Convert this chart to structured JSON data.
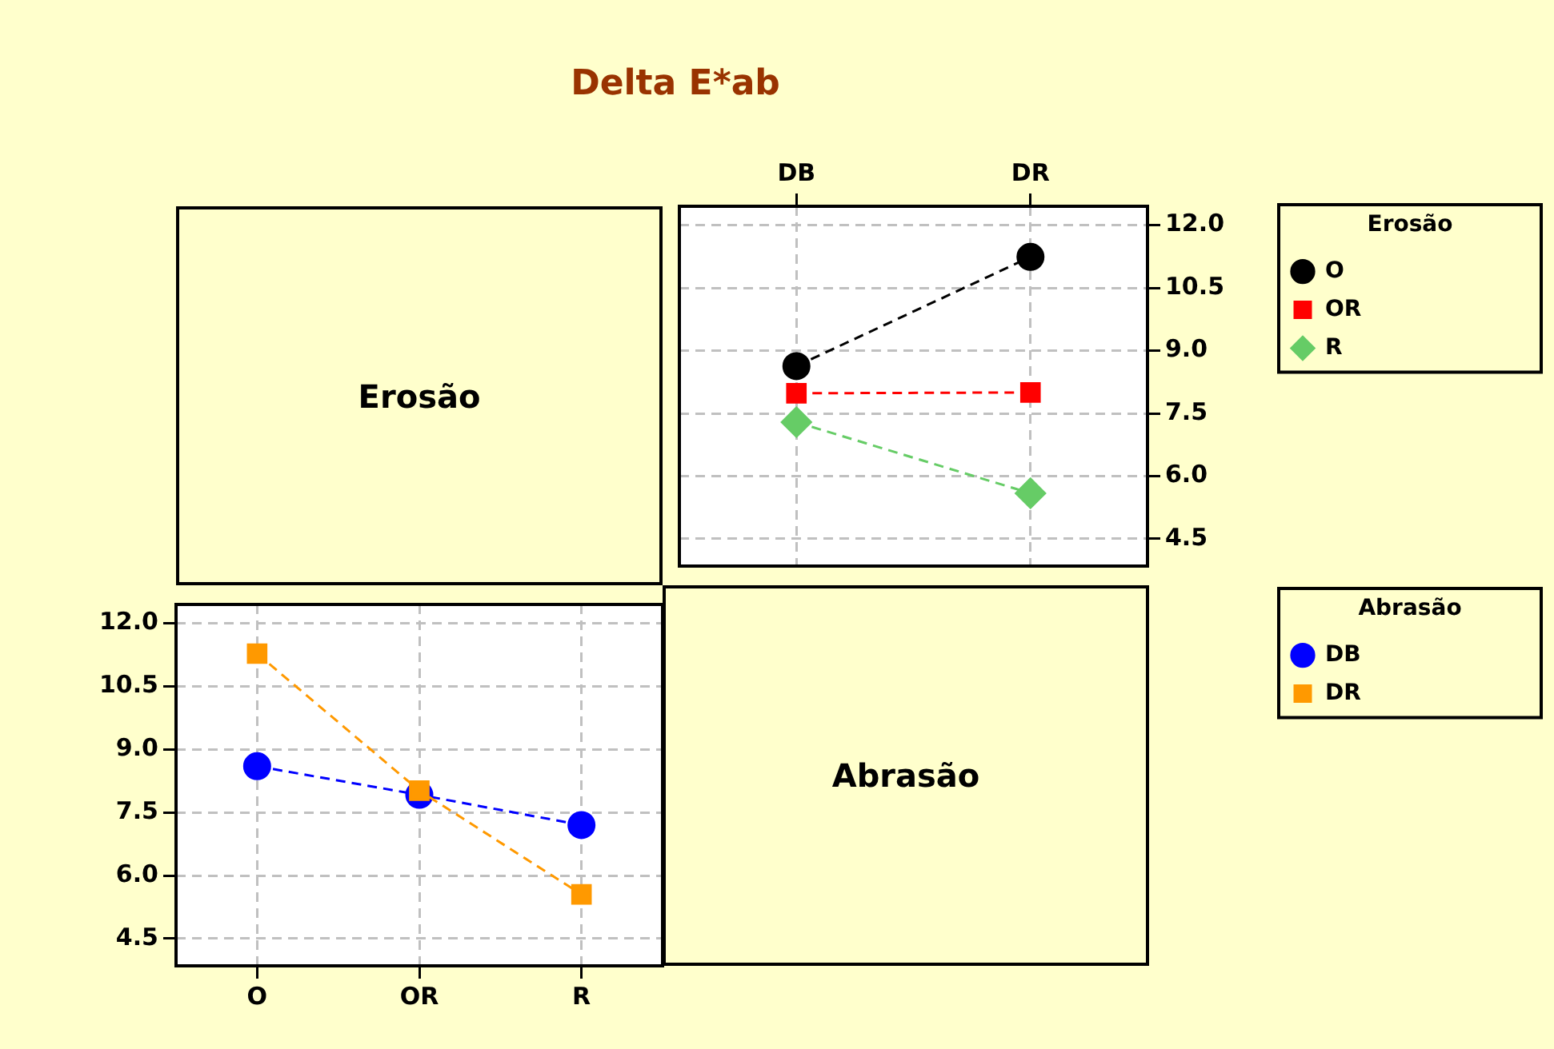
{
  "chart_data": [
    {
      "type": "line",
      "title": "Delta E*ab",
      "legend_title": "Erosão",
      "categories": [
        "DB",
        "DR"
      ],
      "series": [
        {
          "name": "O",
          "color": "#000000",
          "marker": "circle",
          "values": [
            8.63,
            11.24
          ]
        },
        {
          "name": "OR",
          "color": "#ff0000",
          "marker": "square",
          "values": [
            7.98,
            8.0
          ]
        },
        {
          "name": "R",
          "color": "#66cc66",
          "marker": "diamond",
          "values": [
            7.29,
            5.59
          ]
        }
      ],
      "ylim": [
        3.85,
        12.45
      ],
      "yticks": [
        4.5,
        {
          "value": 6,
          "label": "6.0"
        },
        7.5,
        {
          "value": 9,
          "label": "9.0"
        },
        10.5,
        {
          "value": 12,
          "label": "12.0"
        }
      ],
      "grid": true,
      "legend": "right",
      "line_style": "dashed"
    },
    {
      "type": "other",
      "title": "Erosão"
    },
    {
      "type": "line",
      "legend_title": "Abrasão",
      "categories": [
        "O",
        "OR",
        "R"
      ],
      "series": [
        {
          "name": "DB",
          "color": "#0000ff",
          "marker": "circle",
          "values": [
            8.6,
            7.92,
            7.2
          ]
        },
        {
          "name": "DR",
          "color": "#ff9900",
          "marker": "square",
          "values": [
            11.28,
            8.02,
            5.55
          ]
        }
      ],
      "ylim": [
        3.85,
        12.45
      ],
      "yticks": [
        4.5,
        {
          "value": 6,
          "label": "6.0"
        },
        7.5,
        {
          "value": 9,
          "label": "9.0"
        },
        10.5,
        {
          "value": 12,
          "label": "12.0"
        }
      ],
      "grid": true,
      "legend": "right",
      "line_style": "dashed"
    },
    {
      "type": "other",
      "title": "Abrasão"
    }
  ]
}
